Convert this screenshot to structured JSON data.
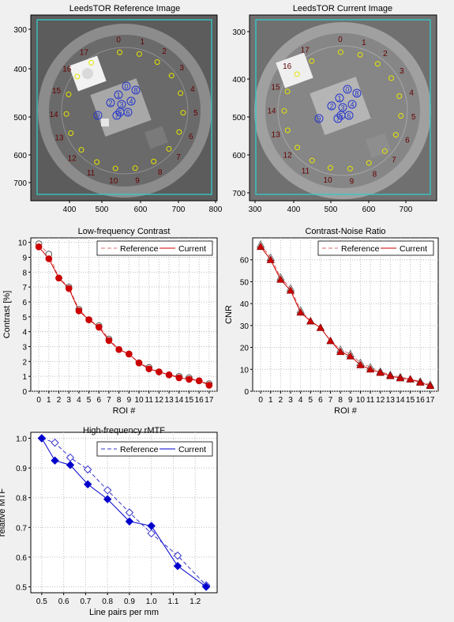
{
  "images": [
    {
      "title": "LeedsTOR Reference Image",
      "xticks": [
        400,
        500,
        600,
        700,
        800
      ],
      "yticks": [
        300,
        400,
        500,
        600,
        700
      ],
      "roi_labels": [
        "0",
        "1",
        "2",
        "3",
        "4",
        "5",
        "6",
        "7",
        "8",
        "9",
        "10",
        "11",
        "12",
        "13",
        "14",
        "15",
        "16",
        "17"
      ],
      "hf_labels": [
        "0",
        "1",
        "2",
        "3",
        "4",
        "5",
        "6",
        "7",
        "8",
        "9"
      ]
    },
    {
      "title": "LeedsTOR Current Image",
      "xticks": [
        300,
        400,
        500,
        600,
        700
      ],
      "yticks": [
        300,
        400,
        500,
        600,
        700
      ],
      "roi_labels": [
        "0",
        "1",
        "2",
        "3",
        "4",
        "5",
        "6",
        "7",
        "8",
        "9",
        "10",
        "11",
        "12",
        "13",
        "14",
        "15",
        "16",
        "17"
      ],
      "hf_labels": [
        "0",
        "1",
        "2",
        "3",
        "4",
        "5",
        "6",
        "7",
        "8",
        "9"
      ]
    }
  ],
  "colors": {
    "reference_line": "#e06666",
    "current_line": "#cc0000",
    "current_marker": "#cc0000",
    "mtf_reference": "#3333cc",
    "mtf_current": "#0000cc",
    "roi_circle": "#e6e600",
    "hf_circle": "#2233cc",
    "roi_text": "#660000",
    "image_frame": "#33cccc"
  },
  "chart_data": [
    {
      "type": "line",
      "title": "Low-frequency Contrast",
      "xlabel": "ROI #",
      "ylabel": "Contrast [%]",
      "x": [
        0,
        1,
        2,
        3,
        4,
        5,
        6,
        7,
        8,
        9,
        10,
        11,
        12,
        13,
        14,
        15,
        16,
        17
      ],
      "xticks": [
        "0",
        "1",
        "2",
        "3",
        "4",
        "5",
        "6",
        "7",
        "8",
        "9",
        "10",
        "11",
        "12",
        "13",
        "14",
        "15",
        "16",
        "17"
      ],
      "ylim": [
        0,
        10.3
      ],
      "yticks": [
        "0",
        "1",
        "2",
        "3",
        "4",
        "5",
        "6",
        "7",
        "8",
        "9",
        "10"
      ],
      "grid": true,
      "legend": "top-right",
      "series": [
        {
          "name": "Reference",
          "style": "dashed",
          "marker": "open-circle",
          "values": [
            9.9,
            9.2,
            7.6,
            7.0,
            5.5,
            4.8,
            4.4,
            3.5,
            2.8,
            2.5,
            1.9,
            1.6,
            1.3,
            1.1,
            1.0,
            0.9,
            0.7,
            0.5
          ]
        },
        {
          "name": "Current",
          "style": "solid",
          "marker": "filled-circle",
          "values": [
            9.7,
            8.9,
            7.6,
            6.9,
            5.4,
            4.8,
            4.3,
            3.4,
            2.8,
            2.5,
            1.9,
            1.5,
            1.3,
            1.1,
            0.9,
            0.8,
            0.7,
            0.4
          ]
        }
      ]
    },
    {
      "type": "line",
      "title": "Contrast-Noise Ratio",
      "xlabel": "ROI #",
      "ylabel": "CNR",
      "x": [
        0,
        1,
        2,
        3,
        4,
        5,
        6,
        7,
        8,
        9,
        10,
        11,
        12,
        13,
        14,
        15,
        16,
        17
      ],
      "xticks": [
        "0",
        "1",
        "2",
        "3",
        "4",
        "5",
        "6",
        "7",
        "8",
        "9",
        "10",
        "11",
        "12",
        "13",
        "14",
        "15",
        "16",
        "17"
      ],
      "ylim": [
        0,
        70
      ],
      "yticks": [
        "0",
        "10",
        "20",
        "30",
        "40",
        "50",
        "60"
      ],
      "grid": true,
      "legend": "top-right",
      "series": [
        {
          "name": "Reference",
          "style": "dashed",
          "marker": "open-triangle",
          "values": [
            67,
            61,
            52,
            47,
            37,
            32,
            29,
            23,
            19,
            17,
            13,
            11,
            9,
            7.5,
            6.5,
            5.5,
            4.5,
            3
          ]
        },
        {
          "name": "Current",
          "style": "solid",
          "marker": "filled-triangle",
          "values": [
            66,
            60,
            51,
            46,
            36,
            32,
            29,
            23,
            18,
            16,
            12,
            10,
            8.5,
            7,
            6,
            5.5,
            4,
            2.5
          ]
        }
      ]
    },
    {
      "type": "line",
      "title": "High-frequency rMTF",
      "xlabel": "Line pairs per mm",
      "ylabel": "relative MTF",
      "xlim": [
        0.45,
        1.3
      ],
      "ylim": [
        0.48,
        1.02
      ],
      "xticks": [
        "0.5",
        "0.6",
        "0.7",
        "0.8",
        "0.9",
        "1.0",
        "1.1",
        "1.2"
      ],
      "yticks": [
        "0.5",
        "0.6",
        "0.7",
        "0.8",
        "0.9",
        "1.0"
      ],
      "grid": true,
      "legend": "top-right",
      "series": [
        {
          "name": "Reference",
          "style": "dashed",
          "marker": "open-diamond",
          "x": [
            0.5,
            0.56,
            0.63,
            0.71,
            0.8,
            0.9,
            1.0,
            1.12,
            1.25
          ],
          "values": [
            1.0,
            0.985,
            0.935,
            0.895,
            0.825,
            0.75,
            0.68,
            0.605,
            0.505
          ]
        },
        {
          "name": "Current",
          "style": "solid",
          "marker": "filled-diamond",
          "x": [
            0.5,
            0.56,
            0.63,
            0.71,
            0.8,
            0.9,
            1.0,
            1.12,
            1.25
          ],
          "values": [
            1.0,
            0.925,
            0.91,
            0.845,
            0.795,
            0.72,
            0.705,
            0.57,
            0.5
          ]
        }
      ]
    }
  ]
}
